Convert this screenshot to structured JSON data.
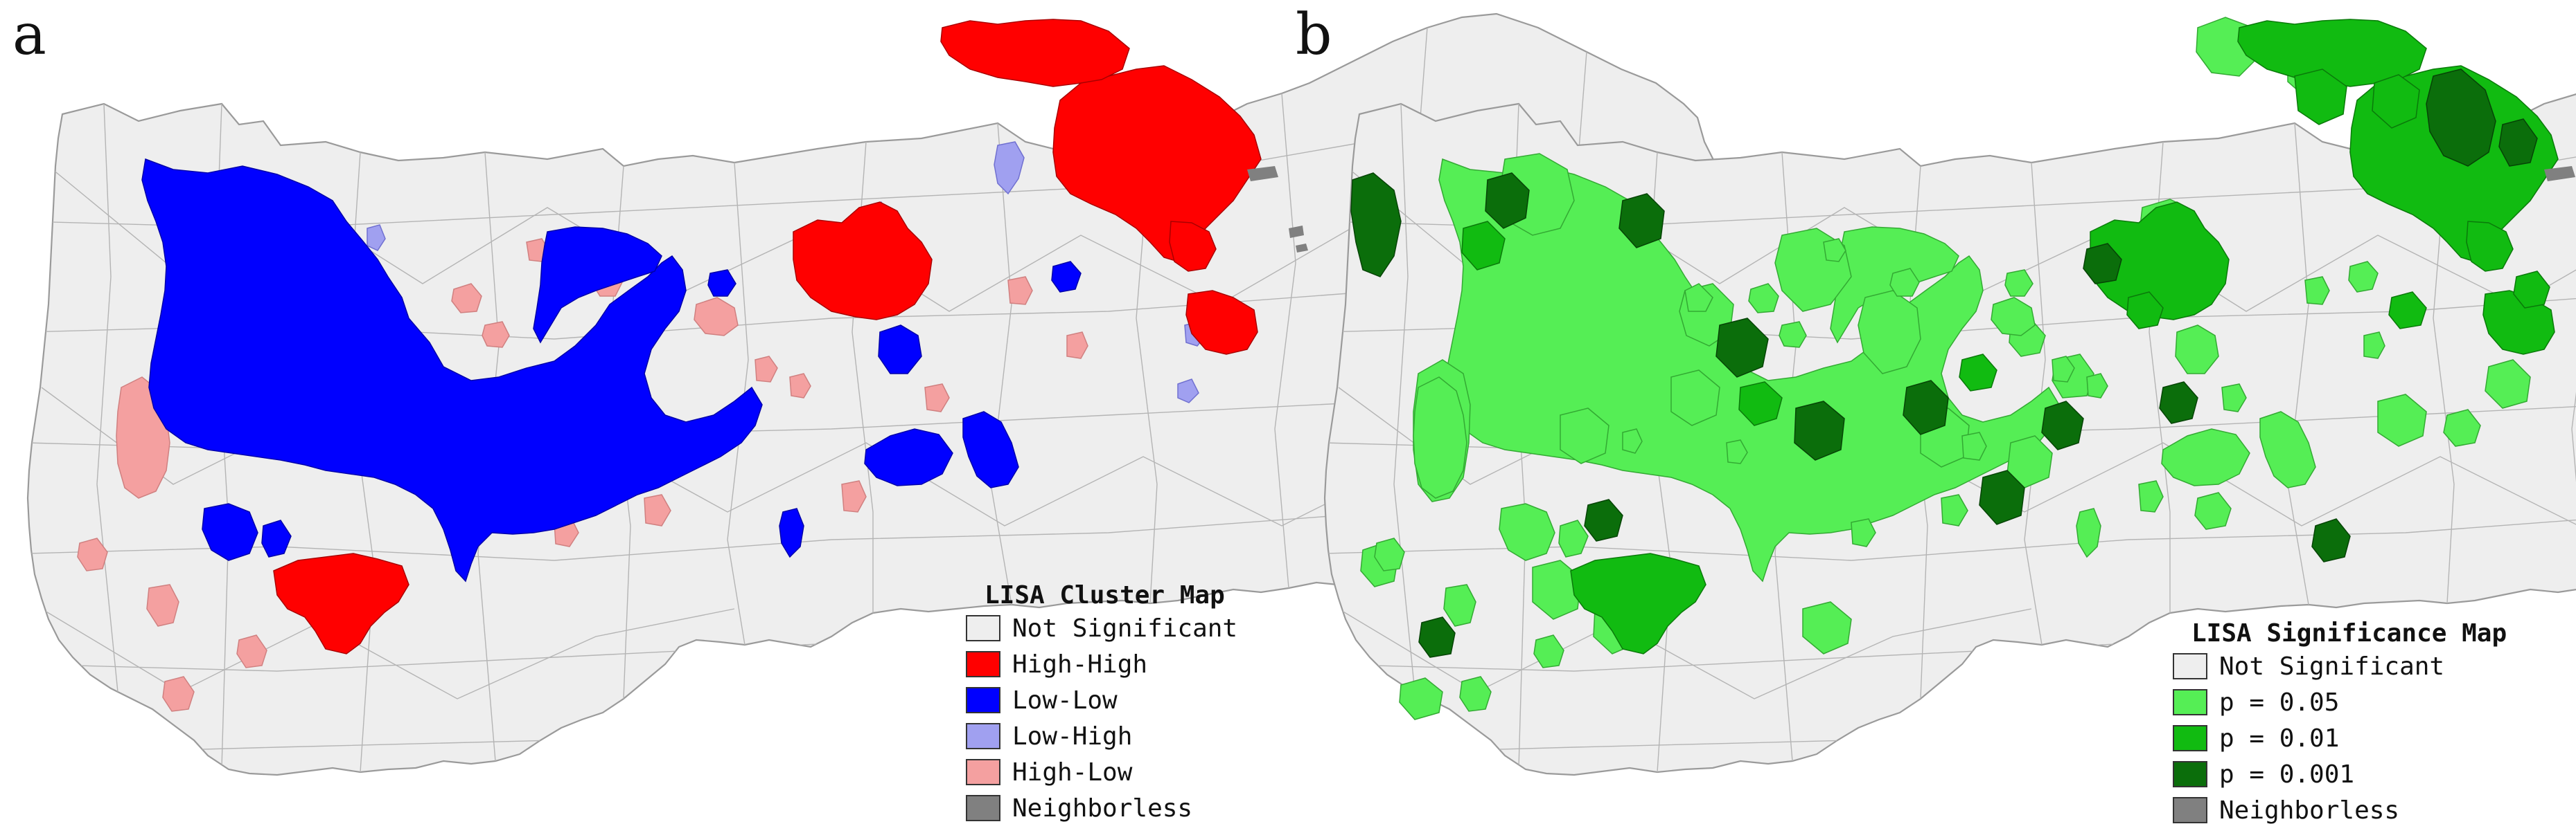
{
  "panels": [
    {
      "id": "a",
      "letter": "a",
      "legend": {
        "title": "LISA Cluster Map",
        "items": [
          {
            "label": "Not Significant",
            "color": "#eeeeee"
          },
          {
            "label": "High-High",
            "color": "#ff0000"
          },
          {
            "label": "Low-Low",
            "color": "#0000ff"
          },
          {
            "label": "Low-High",
            "color": "#a0a0f0"
          },
          {
            "label": "High-Low",
            "color": "#f4a0a0"
          },
          {
            "label": "Neighborless",
            "color": "#808080"
          }
        ]
      }
    },
    {
      "id": "b",
      "letter": "b",
      "legend": {
        "title": "LISA Significance Map",
        "items": [
          {
            "label": "Not Significant",
            "color": "#eeeeee"
          },
          {
            "label": "p = 0.05",
            "color": "#55ee55"
          },
          {
            "label": "p = 0.01",
            "color": "#11bb11"
          },
          {
            "label": "p = 0.001",
            "color": "#0b6e0b"
          },
          {
            "label": "Neighborless",
            "color": "#808080"
          }
        ]
      }
    }
  ]
}
